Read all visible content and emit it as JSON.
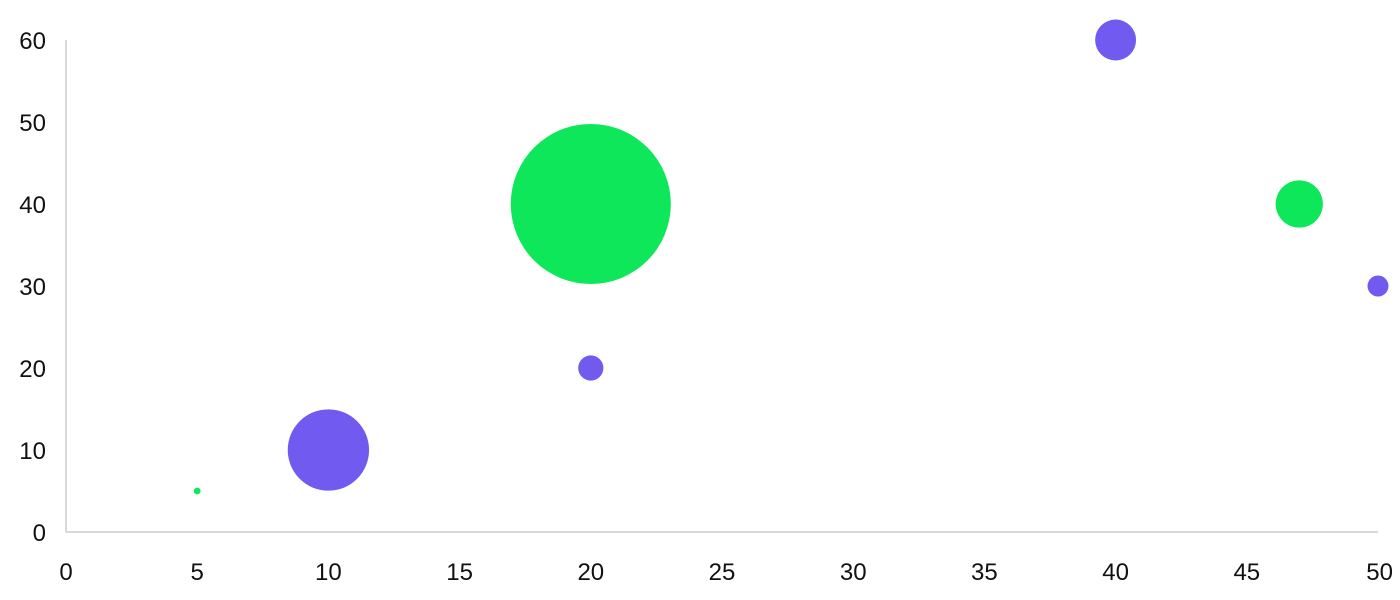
{
  "chart_data": {
    "type": "bubble",
    "xlim": [
      0,
      50
    ],
    "ylim": [
      0,
      60
    ],
    "x_ticks": [
      0,
      5,
      10,
      15,
      20,
      25,
      30,
      35,
      40,
      45,
      50
    ],
    "y_ticks": [
      0,
      10,
      20,
      30,
      40,
      50,
      60
    ],
    "grid": false,
    "legend": "none",
    "series": [
      {
        "color": "#0fe75a",
        "points": [
          {
            "x": 5,
            "y": 5,
            "r": 0.13
          },
          {
            "x": 20,
            "y": 40,
            "r": 3.05
          },
          {
            "x": 47,
            "y": 40,
            "r": 0.9
          }
        ]
      },
      {
        "color": "#715aef",
        "points": [
          {
            "x": 10,
            "y": 10,
            "r": 1.55
          },
          {
            "x": 20,
            "y": 20,
            "r": 0.48
          },
          {
            "x": 40,
            "y": 60,
            "r": 0.78
          },
          {
            "x": 50,
            "y": 30,
            "r": 0.4
          }
        ]
      }
    ]
  }
}
